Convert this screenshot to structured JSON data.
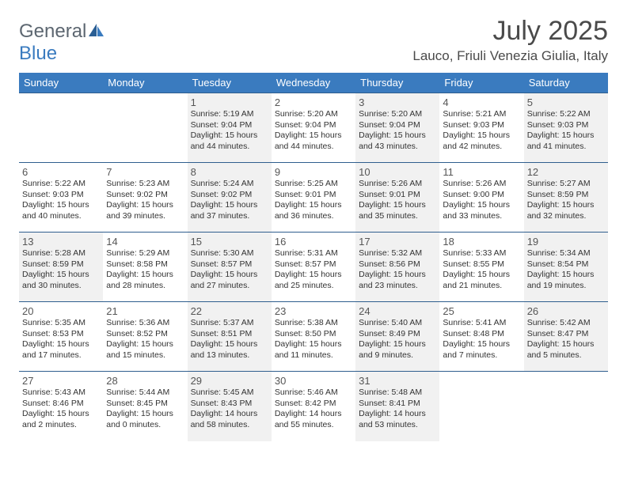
{
  "brand": {
    "part1": "General",
    "part2": "Blue"
  },
  "title": "July 2025",
  "location": "Lauco, Friuli Venezia Giulia, Italy",
  "colors": {
    "header_bg": "#3a7bbf",
    "header_text": "#ffffff",
    "border": "#2f5e8e",
    "logo_gray": "#5c6670",
    "logo_blue": "#3a7bbf",
    "text": "#333333",
    "highlight_bg": "#f1f1f1"
  },
  "weekdays": [
    "Sunday",
    "Monday",
    "Tuesday",
    "Wednesday",
    "Thursday",
    "Friday",
    "Saturday"
  ],
  "weeks": [
    [
      null,
      null,
      {
        "n": "1",
        "sr": "Sunrise: 5:19 AM",
        "ss": "Sunset: 9:04 PM",
        "d1": "Daylight: 15 hours",
        "d2": "and 44 minutes.",
        "hl": true
      },
      {
        "n": "2",
        "sr": "Sunrise: 5:20 AM",
        "ss": "Sunset: 9:04 PM",
        "d1": "Daylight: 15 hours",
        "d2": "and 44 minutes."
      },
      {
        "n": "3",
        "sr": "Sunrise: 5:20 AM",
        "ss": "Sunset: 9:04 PM",
        "d1": "Daylight: 15 hours",
        "d2": "and 43 minutes.",
        "hl": true
      },
      {
        "n": "4",
        "sr": "Sunrise: 5:21 AM",
        "ss": "Sunset: 9:03 PM",
        "d1": "Daylight: 15 hours",
        "d2": "and 42 minutes."
      },
      {
        "n": "5",
        "sr": "Sunrise: 5:22 AM",
        "ss": "Sunset: 9:03 PM",
        "d1": "Daylight: 15 hours",
        "d2": "and 41 minutes.",
        "hl": true
      }
    ],
    [
      {
        "n": "6",
        "sr": "Sunrise: 5:22 AM",
        "ss": "Sunset: 9:03 PM",
        "d1": "Daylight: 15 hours",
        "d2": "and 40 minutes."
      },
      {
        "n": "7",
        "sr": "Sunrise: 5:23 AM",
        "ss": "Sunset: 9:02 PM",
        "d1": "Daylight: 15 hours",
        "d2": "and 39 minutes."
      },
      {
        "n": "8",
        "sr": "Sunrise: 5:24 AM",
        "ss": "Sunset: 9:02 PM",
        "d1": "Daylight: 15 hours",
        "d2": "and 37 minutes.",
        "hl": true
      },
      {
        "n": "9",
        "sr": "Sunrise: 5:25 AM",
        "ss": "Sunset: 9:01 PM",
        "d1": "Daylight: 15 hours",
        "d2": "and 36 minutes."
      },
      {
        "n": "10",
        "sr": "Sunrise: 5:26 AM",
        "ss": "Sunset: 9:01 PM",
        "d1": "Daylight: 15 hours",
        "d2": "and 35 minutes.",
        "hl": true
      },
      {
        "n": "11",
        "sr": "Sunrise: 5:26 AM",
        "ss": "Sunset: 9:00 PM",
        "d1": "Daylight: 15 hours",
        "d2": "and 33 minutes."
      },
      {
        "n": "12",
        "sr": "Sunrise: 5:27 AM",
        "ss": "Sunset: 8:59 PM",
        "d1": "Daylight: 15 hours",
        "d2": "and 32 minutes.",
        "hl": true
      }
    ],
    [
      {
        "n": "13",
        "sr": "Sunrise: 5:28 AM",
        "ss": "Sunset: 8:59 PM",
        "d1": "Daylight: 15 hours",
        "d2": "and 30 minutes.",
        "hl": true
      },
      {
        "n": "14",
        "sr": "Sunrise: 5:29 AM",
        "ss": "Sunset: 8:58 PM",
        "d1": "Daylight: 15 hours",
        "d2": "and 28 minutes."
      },
      {
        "n": "15",
        "sr": "Sunrise: 5:30 AM",
        "ss": "Sunset: 8:57 PM",
        "d1": "Daylight: 15 hours",
        "d2": "and 27 minutes.",
        "hl": true
      },
      {
        "n": "16",
        "sr": "Sunrise: 5:31 AM",
        "ss": "Sunset: 8:57 PM",
        "d1": "Daylight: 15 hours",
        "d2": "and 25 minutes."
      },
      {
        "n": "17",
        "sr": "Sunrise: 5:32 AM",
        "ss": "Sunset: 8:56 PM",
        "d1": "Daylight: 15 hours",
        "d2": "and 23 minutes.",
        "hl": true
      },
      {
        "n": "18",
        "sr": "Sunrise: 5:33 AM",
        "ss": "Sunset: 8:55 PM",
        "d1": "Daylight: 15 hours",
        "d2": "and 21 minutes."
      },
      {
        "n": "19",
        "sr": "Sunrise: 5:34 AM",
        "ss": "Sunset: 8:54 PM",
        "d1": "Daylight: 15 hours",
        "d2": "and 19 minutes.",
        "hl": true
      }
    ],
    [
      {
        "n": "20",
        "sr": "Sunrise: 5:35 AM",
        "ss": "Sunset: 8:53 PM",
        "d1": "Daylight: 15 hours",
        "d2": "and 17 minutes."
      },
      {
        "n": "21",
        "sr": "Sunrise: 5:36 AM",
        "ss": "Sunset: 8:52 PM",
        "d1": "Daylight: 15 hours",
        "d2": "and 15 minutes."
      },
      {
        "n": "22",
        "sr": "Sunrise: 5:37 AM",
        "ss": "Sunset: 8:51 PM",
        "d1": "Daylight: 15 hours",
        "d2": "and 13 minutes.",
        "hl": true
      },
      {
        "n": "23",
        "sr": "Sunrise: 5:38 AM",
        "ss": "Sunset: 8:50 PM",
        "d1": "Daylight: 15 hours",
        "d2": "and 11 minutes."
      },
      {
        "n": "24",
        "sr": "Sunrise: 5:40 AM",
        "ss": "Sunset: 8:49 PM",
        "d1": "Daylight: 15 hours",
        "d2": "and 9 minutes.",
        "hl": true
      },
      {
        "n": "25",
        "sr": "Sunrise: 5:41 AM",
        "ss": "Sunset: 8:48 PM",
        "d1": "Daylight: 15 hours",
        "d2": "and 7 minutes."
      },
      {
        "n": "26",
        "sr": "Sunrise: 5:42 AM",
        "ss": "Sunset: 8:47 PM",
        "d1": "Daylight: 15 hours",
        "d2": "and 5 minutes.",
        "hl": true
      }
    ],
    [
      {
        "n": "27",
        "sr": "Sunrise: 5:43 AM",
        "ss": "Sunset: 8:46 PM",
        "d1": "Daylight: 15 hours",
        "d2": "and 2 minutes."
      },
      {
        "n": "28",
        "sr": "Sunrise: 5:44 AM",
        "ss": "Sunset: 8:45 PM",
        "d1": "Daylight: 15 hours",
        "d2": "and 0 minutes."
      },
      {
        "n": "29",
        "sr": "Sunrise: 5:45 AM",
        "ss": "Sunset: 8:43 PM",
        "d1": "Daylight: 14 hours",
        "d2": "and 58 minutes.",
        "hl": true
      },
      {
        "n": "30",
        "sr": "Sunrise: 5:46 AM",
        "ss": "Sunset: 8:42 PM",
        "d1": "Daylight: 14 hours",
        "d2": "and 55 minutes."
      },
      {
        "n": "31",
        "sr": "Sunrise: 5:48 AM",
        "ss": "Sunset: 8:41 PM",
        "d1": "Daylight: 14 hours",
        "d2": "and 53 minutes.",
        "hl": true
      },
      null,
      null
    ]
  ]
}
